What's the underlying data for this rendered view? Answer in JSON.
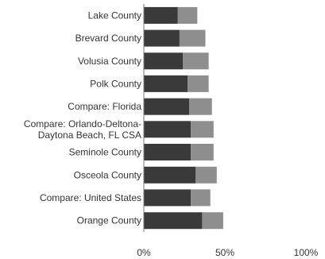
{
  "chart_data": {
    "type": "bar",
    "stacked": true,
    "orientation": "horizontal",
    "categories": [
      [
        "Lake County"
      ],
      [
        "Brevard County"
      ],
      [
        "Volusia County"
      ],
      [
        "Polk County"
      ],
      [
        "Compare: Florida"
      ],
      [
        "Compare: Orlando-Deltona-",
        "Daytona Beach, FL CSA"
      ],
      [
        "Seminole County"
      ],
      [
        "Osceola County"
      ],
      [
        "Compare: United States"
      ],
      [
        "Orange County"
      ]
    ],
    "series": [
      {
        "values": [
          21,
          22,
          24,
          27,
          28,
          29,
          29,
          32,
          29,
          36
        ]
      },
      {
        "values": [
          12,
          16,
          16,
          13,
          14,
          14,
          14,
          13,
          12,
          13
        ]
      }
    ],
    "xlim": [
      0,
      100
    ],
    "xticks": [
      0,
      50,
      100
    ],
    "xtick_labels": [
      "0%",
      "50%",
      "100%"
    ],
    "grid": false,
    "colors": {
      "series": [
        "#3a3a3a",
        "#8e8e8e"
      ],
      "axis": "#777777",
      "text": "#333333"
    }
  }
}
